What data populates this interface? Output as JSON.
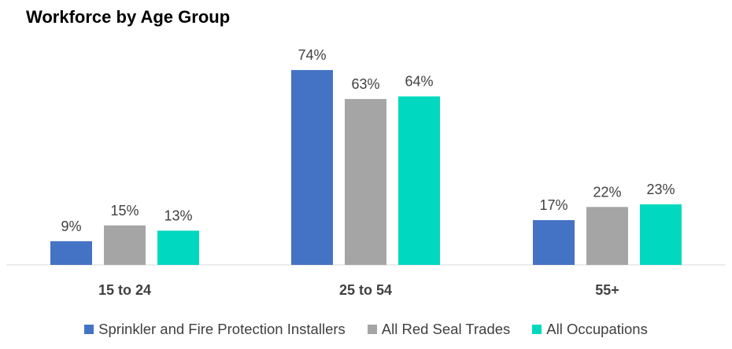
{
  "chart_data": {
    "type": "bar",
    "title": "Workforce by Age Group",
    "categories": [
      "15 to 24",
      "25 to 54",
      "55+"
    ],
    "series": [
      {
        "name": "Sprinkler and Fire Protection Installers",
        "values": [
          9,
          74,
          17
        ],
        "labels": [
          "9%",
          "74%",
          "17%"
        ],
        "color": "#4472C4"
      },
      {
        "name": "All Red Seal Trades",
        "values": [
          15,
          63,
          22
        ],
        "labels": [
          "15%",
          "63%",
          "22%"
        ],
        "color": "#A5A5A5"
      },
      {
        "name": "All Occupations",
        "values": [
          13,
          64,
          23
        ],
        "labels": [
          "13%",
          "64%",
          "23%"
        ],
        "color": "#00D9C0"
      }
    ],
    "ylim": [
      0,
      100
    ],
    "grid": false,
    "legend_position": "bottom"
  }
}
